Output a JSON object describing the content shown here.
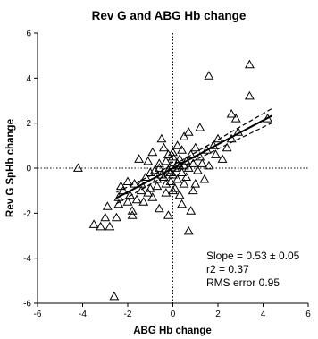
{
  "chart_data": {
    "type": "scatter",
    "title": "Rev G and ABG Hb change",
    "xlabel": "ABG Hb change",
    "ylabel": "Rev G SpHb change",
    "xlim": [
      -6,
      6
    ],
    "ylim": [
      -6,
      6
    ],
    "x_ticks": [
      -6,
      -4,
      -2,
      0,
      2,
      4,
      6
    ],
    "y_ticks": [
      -6,
      -4,
      -2,
      0,
      2,
      4,
      6
    ],
    "x_tick_labels": [
      "-6",
      "-4",
      "-2",
      "0",
      "2",
      "4",
      "6"
    ],
    "y_tick_labels": [
      "-6",
      "-4",
      "-2",
      "0",
      "2",
      "4",
      "6"
    ],
    "grid": false,
    "zero_lines": true,
    "marker": "open-triangle",
    "regression": {
      "slope": 0.53,
      "intercept": 0.0,
      "x_range": [
        -2.5,
        4.4
      ],
      "ci_band": true
    },
    "annotations": [
      "Slope = 0.53 ± 0.05",
      "r2 = 0.37",
      "RMS error 0.95"
    ],
    "points": [
      [
        -4.2,
        0.0
      ],
      [
        -2.6,
        -5.7
      ],
      [
        -0.2,
        -2.1
      ],
      [
        1.0,
        -0.7
      ],
      [
        1.6,
        4.1
      ],
      [
        3.4,
        4.6
      ],
      [
        3.4,
        3.2
      ],
      [
        4.2,
        2.2
      ],
      [
        2.8,
        2.2
      ],
      [
        2.6,
        2.4
      ],
      [
        2.0,
        1.3
      ],
      [
        1.8,
        1.0
      ],
      [
        1.2,
        1.8
      ],
      [
        0.7,
        1.6
      ],
      [
        0.5,
        1.4
      ],
      [
        -0.5,
        1.3
      ],
      [
        -0.4,
        0.9
      ],
      [
        -0.9,
        0.7
      ],
      [
        0.0,
        0.7
      ],
      [
        0.2,
        1.0
      ],
      [
        1.9,
        0.6
      ],
      [
        2.2,
        0.4
      ],
      [
        0.0,
        0.5
      ],
      [
        0.3,
        0.4
      ],
      [
        0.6,
        0.3
      ],
      [
        -0.3,
        0.3
      ],
      [
        -0.6,
        0.2
      ],
      [
        0.9,
        0.2
      ],
      [
        1.2,
        0.5
      ],
      [
        1.5,
        0.8
      ],
      [
        -1.1,
        0.3
      ],
      [
        -1.5,
        0.4
      ],
      [
        0.1,
        0.0
      ],
      [
        0.4,
        -0.2
      ],
      [
        -0.2,
        -0.1
      ],
      [
        -0.5,
        -0.3
      ],
      [
        0.7,
        0.0
      ],
      [
        1.1,
        -0.1
      ],
      [
        -0.8,
        -0.1
      ],
      [
        -1.2,
        -0.4
      ],
      [
        0.2,
        -0.5
      ],
      [
        -0.1,
        -0.6
      ],
      [
        0.5,
        -0.7
      ],
      [
        -0.7,
        -0.8
      ],
      [
        -1.0,
        -0.9
      ],
      [
        -1.4,
        -1.0
      ],
      [
        -1.7,
        -0.7
      ],
      [
        -2.0,
        -0.6
      ],
      [
        -2.3,
        -0.8
      ],
      [
        0.1,
        -0.9
      ],
      [
        0.3,
        -1.2
      ],
      [
        -0.3,
        -1.1
      ],
      [
        -0.9,
        -1.3
      ],
      [
        -1.3,
        -1.5
      ],
      [
        -1.6,
        -1.4
      ],
      [
        -2.0,
        -1.5
      ],
      [
        -2.4,
        -1.6
      ],
      [
        -2.9,
        -1.7
      ],
      [
        -0.6,
        -1.8
      ],
      [
        -1.8,
        -1.9
      ],
      [
        -1.8,
        -2.1
      ],
      [
        -3.0,
        -2.2
      ],
      [
        -3.2,
        -2.6
      ],
      [
        -3.5,
        -2.5
      ],
      [
        -2.8,
        -2.6
      ],
      [
        -2.5,
        -2.2
      ],
      [
        -2.4,
        -1.3
      ],
      [
        -2.2,
        -1.0
      ],
      [
        -1.9,
        -1.2
      ],
      [
        0.8,
        -1.9
      ],
      [
        0.7,
        -2.8
      ],
      [
        0.4,
        -1.6
      ],
      [
        0.9,
        -1.0
      ],
      [
        1.4,
        -0.5
      ],
      [
        1.6,
        0.1
      ],
      [
        2.4,
        0.9
      ],
      [
        2.6,
        1.3
      ],
      [
        2.9,
        1.6
      ],
      [
        0.2,
        0.2
      ],
      [
        -0.1,
        0.1
      ],
      [
        0.5,
        0.1
      ],
      [
        -0.4,
        -0.4
      ],
      [
        0.0,
        -0.3
      ],
      [
        0.8,
        0.6
      ],
      [
        -0.2,
        0.6
      ],
      [
        0.4,
        0.8
      ],
      [
        -0.7,
        -0.5
      ],
      [
        -1.0,
        -0.2
      ],
      [
        1.0,
        0.9
      ],
      [
        -0.3,
        -0.7
      ],
      [
        0.6,
        -0.4
      ],
      [
        -1.4,
        -0.7
      ],
      [
        0.3,
        0.1
      ],
      [
        -0.1,
        -0.2
      ],
      [
        -0.6,
        0.0
      ],
      [
        1.3,
        0.2
      ],
      [
        0.0,
        -1.0
      ],
      [
        -1.1,
        -1.1
      ]
    ]
  }
}
